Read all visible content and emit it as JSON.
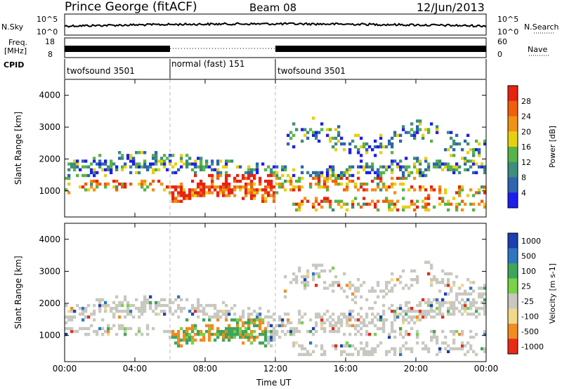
{
  "header": {
    "title": "Prince George (fitACF)",
    "beam": "Beam 08",
    "date": "12/Jun/2013"
  },
  "panels": {
    "nsky": {
      "left_label": "N.Sky",
      "right_label": "N.Search",
      "ticks_left": [
        "10^5",
        "10^0"
      ],
      "ticks_right": [
        "10^5",
        "10^0"
      ]
    },
    "freq": {
      "left_label_1": "Freq.",
      "left_label_2": "[MHz]",
      "ticks_left": [
        "18",
        "8"
      ],
      "ticks_right": [
        "60",
        "0"
      ],
      "right_label": "Nave"
    },
    "cpid": {
      "label": "CPID",
      "segments": [
        {
          "name": "twofsound 3501",
          "start": "00:00",
          "end": "06:00"
        },
        {
          "name": "normal (fast) 151",
          "start": "06:00",
          "end": "12:00"
        },
        {
          "name": "twofsound 3501",
          "start": "12:00",
          "end": "24:00"
        }
      ]
    }
  },
  "chart_data": [
    {
      "type": "heatmap",
      "name": "Power",
      "ylabel": "Slant Range [km]",
      "ylim": [
        180,
        4500
      ],
      "yticks": [
        "1000",
        "2000",
        "3000",
        "4000"
      ],
      "colorbar_label": "Power [dB]",
      "colorbar_ticks": [
        "28",
        "24",
        "20",
        "16",
        "12",
        "8",
        "4"
      ],
      "colors": [
        "#1d1dee",
        "#2f64b0",
        "#3d8e7a",
        "#58b446",
        "#e7d010",
        "#f09214",
        "#f15f0d",
        "#e62410"
      ]
    },
    {
      "type": "heatmap",
      "name": "Velocity",
      "ylabel": "Slant Range [km]",
      "ylim": [
        180,
        4500
      ],
      "yticks": [
        "1000",
        "2000",
        "3000",
        "4000"
      ],
      "colorbar_label": "Velocity [m s-1]",
      "colorbar_ticks": [
        "1000",
        "500",
        "100",
        "25",
        "-25",
        "-100",
        "-500",
        "-1000"
      ],
      "colors": [
        "#1d3fb0",
        "#2e77c0",
        "#3ea55a",
        "#78d24a",
        "#c8c8c0",
        "#f2d98a",
        "#f08c20",
        "#ea2a16"
      ]
    }
  ],
  "xaxis": {
    "label": "Time UT",
    "ticks": [
      "00:00",
      "04:00",
      "08:00",
      "12:00",
      "16:00",
      "20:00",
      "00:00"
    ]
  }
}
